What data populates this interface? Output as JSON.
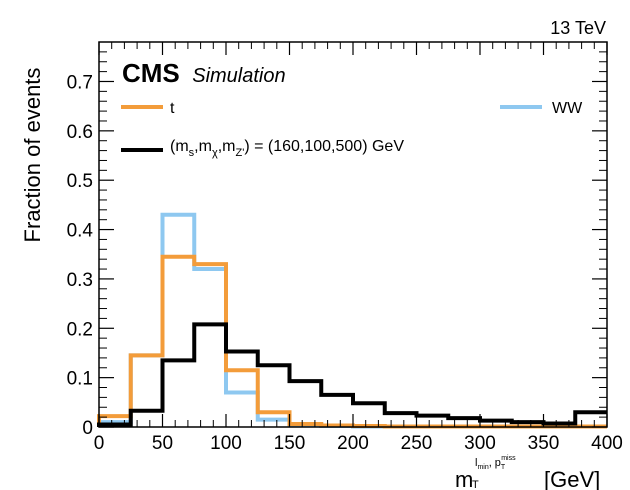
{
  "chart_data": {
    "type": "step",
    "energy_label": "13 TeV",
    "experiment": "CMS",
    "experiment_sub": "Simulation",
    "ylabel": "Fraction of events",
    "xlabel": {
      "main": "m",
      "main_sub": "T",
      "sup1": "l",
      "sup1_sub": "min",
      "sep": ",",
      "sup2": "p",
      "sup2_sub": "T",
      "sup2_sup": "miss",
      "unit": "[GeV]"
    },
    "xlim": [
      0,
      400
    ],
    "ylim": [
      0,
      0.78
    ],
    "xticks": [
      0,
      50,
      100,
      150,
      200,
      250,
      300,
      350,
      400
    ],
    "yticks": [
      0,
      0.1,
      0.2,
      0.3,
      0.4,
      0.5,
      0.6,
      0.7
    ],
    "ytick_labels": [
      "0",
      "0.1",
      "0.2",
      "0.3",
      "0.4",
      "0.5",
      "0.6",
      "0.7"
    ],
    "bin_edges": [
      0,
      25,
      50,
      75,
      100,
      125,
      150,
      175,
      200,
      225,
      250,
      275,
      300,
      325,
      350,
      375,
      400
    ],
    "series": [
      {
        "name": "t",
        "color": "#f39c3a",
        "values": [
          0.022,
          0.145,
          0.345,
          0.33,
          0.115,
          0.03,
          0.006,
          0.003,
          0.002,
          0.001,
          0.001,
          0.001,
          0.001,
          0.001,
          0.001,
          0.001
        ]
      },
      {
        "name": "WW",
        "color": "#8ec8f0",
        "values": [
          0.01,
          0.145,
          0.43,
          0.32,
          0.07,
          0.015,
          0.005,
          0.002,
          0.001,
          0.001,
          0.001,
          0.001,
          0.001,
          0.001,
          0.001,
          0.001
        ]
      },
      {
        "name": "(m_s,m_χ,m_Z') = (160,100,500) GeV",
        "label_parts": {
          "open": "(m",
          "s1": "s",
          "m2": ",m",
          "s2": "χ",
          "m3": ",m",
          "s3": "Z'",
          "close": ") = (160,100,500) GeV"
        },
        "color": "#000000",
        "values": [
          0.005,
          0.033,
          0.135,
          0.208,
          0.153,
          0.125,
          0.093,
          0.065,
          0.048,
          0.028,
          0.023,
          0.018,
          0.013,
          0.01,
          0.007,
          0.03
        ]
      }
    ]
  }
}
